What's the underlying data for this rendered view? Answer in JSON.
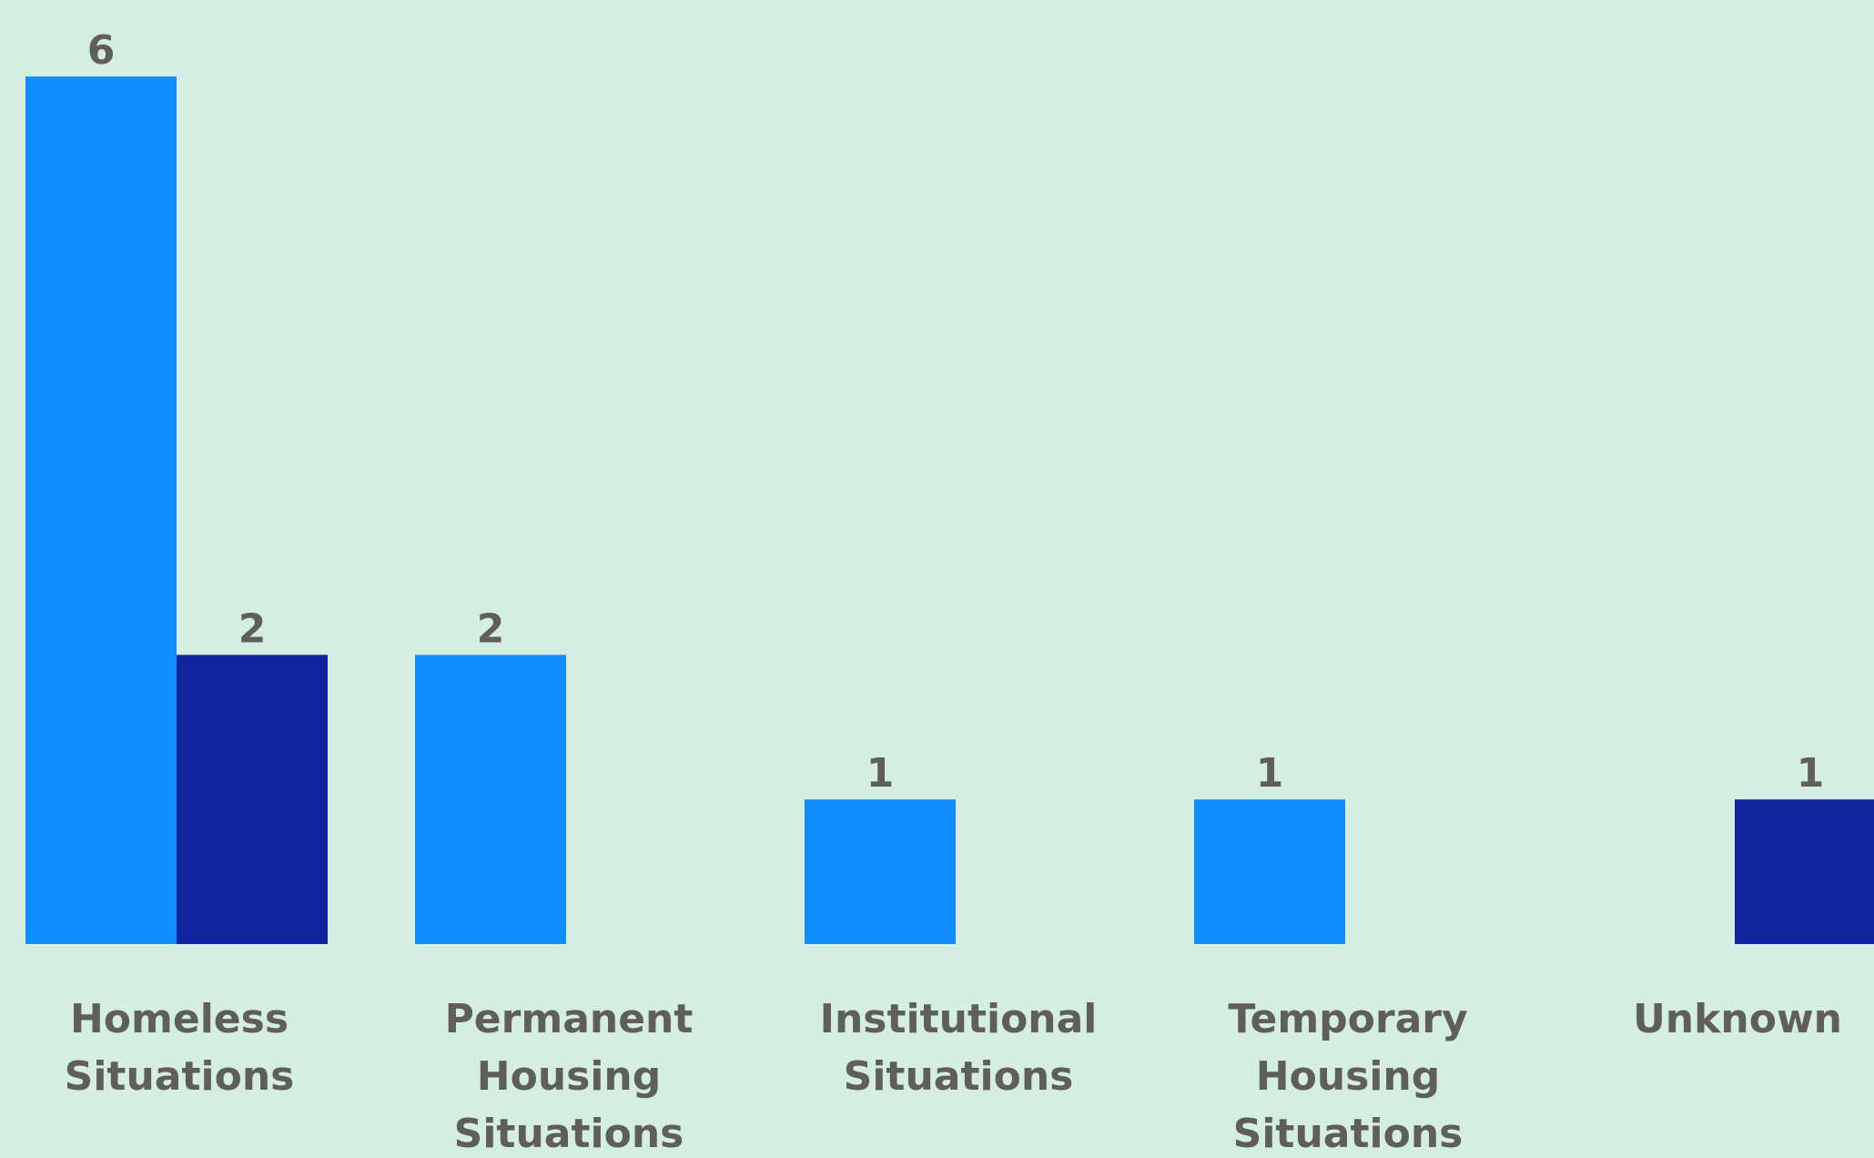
{
  "chart_data": {
    "type": "bar",
    "categories": [
      "Homeless Situations",
      "Permanent Housing Situations",
      "Institutional Situations",
      "Temporary Housing Situations",
      "Unknown"
    ],
    "series": [
      {
        "color": "#118DFF",
        "values": [
          6,
          2,
          1,
          1,
          null
        ]
      },
      {
        "color": "#12239E",
        "values": [
          2,
          null,
          null,
          null,
          1
        ]
      }
    ],
    "ylim": [
      0,
      6
    ]
  }
}
